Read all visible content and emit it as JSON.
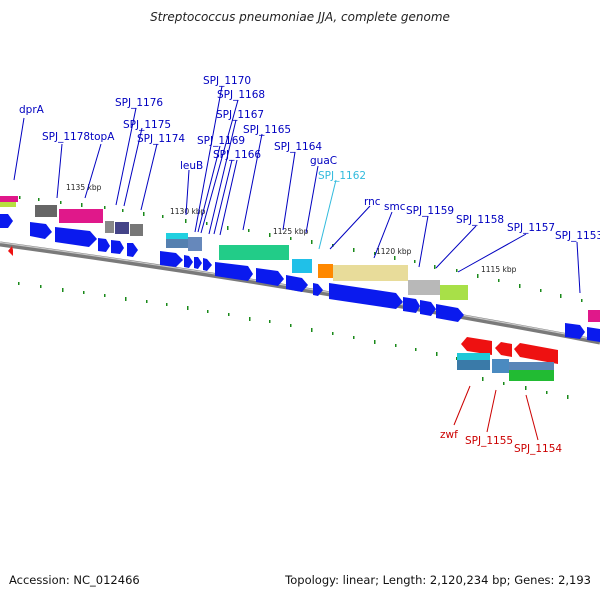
{
  "title": "Streptococcus pneumoniae JJA, complete genome",
  "footer": {
    "accession": "Accession: NC_012466",
    "summary": "Topology: linear; Length: 2,120,234 bp; Genes: 2,193"
  },
  "scale_labels": [
    "1135 kbp",
    "1130 kbp",
    "1125 kbp",
    "1120 kbp",
    "1115 kbp"
  ],
  "gene_labels": [
    {
      "text": "dprA",
      "color": "#0000c0"
    },
    {
      "text": "SPJ_1178",
      "color": "#0000c0"
    },
    {
      "text": "topA",
      "color": "#0000c0"
    },
    {
      "text": "SPJ_1176",
      "color": "#0000c0"
    },
    {
      "text": "SPJ_1175",
      "color": "#0000c0"
    },
    {
      "text": "SPJ_1174",
      "color": "#0000c0"
    },
    {
      "text": "leuB",
      "color": "#0000c0"
    },
    {
      "text": "SPJ_1170",
      "color": "#0000c0"
    },
    {
      "text": "SPJ_1168",
      "color": "#0000c0"
    },
    {
      "text": "SPJ_1167",
      "color": "#0000c0"
    },
    {
      "text": "SPJ_1169",
      "color": "#0000c0"
    },
    {
      "text": "SPJ_1166",
      "color": "#0000c0"
    },
    {
      "text": "SPJ_1165",
      "color": "#0000c0"
    },
    {
      "text": "SPJ_1164",
      "color": "#0000c0"
    },
    {
      "text": "guaC",
      "color": "#0000c0"
    },
    {
      "text": "SPJ_1162",
      "color": "#33bbdd"
    },
    {
      "text": "rnc",
      "color": "#0000c0"
    },
    {
      "text": "smc",
      "color": "#0000c0"
    },
    {
      "text": "SPJ_1159",
      "color": "#0000c0"
    },
    {
      "text": "SPJ_1158",
      "color": "#0000c0"
    },
    {
      "text": "SPJ_1157",
      "color": "#0000c0"
    },
    {
      "text": "SPJ_1153",
      "color": "#0000c0"
    },
    {
      "text": "zwf",
      "color": "#cc0000"
    },
    {
      "text": "SPJ_1155",
      "color": "#cc0000"
    },
    {
      "text": "SPJ_1154",
      "color": "#cc0000"
    }
  ]
}
